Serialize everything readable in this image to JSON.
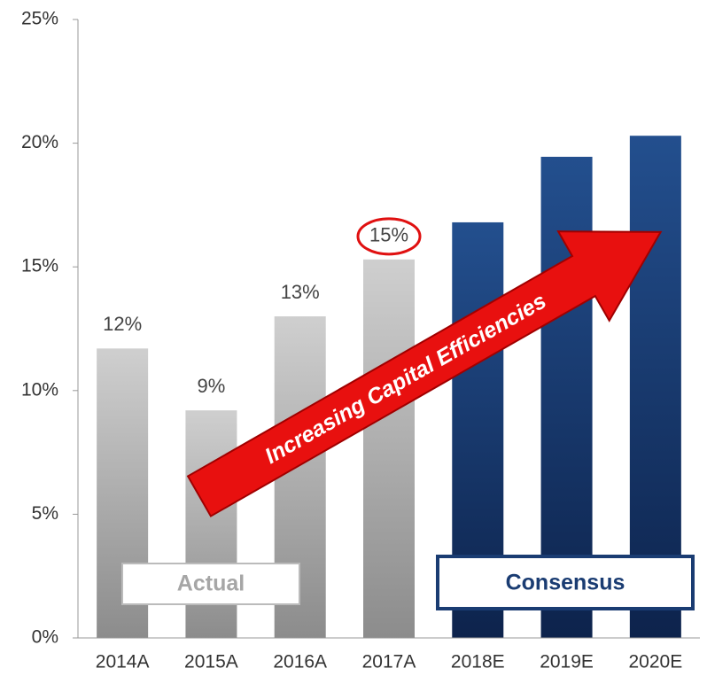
{
  "chart_data": {
    "type": "bar",
    "categories": [
      "2014A",
      "2015A",
      "2016A",
      "2017A",
      "2018E",
      "2019E",
      "2020E"
    ],
    "series": [
      {
        "name": "Actual",
        "color": "#a6a6a6",
        "values": [
          11.7,
          9.2,
          13.0,
          15.3,
          null,
          null,
          null
        ],
        "value_labels": [
          "12%",
          "9%",
          "13%",
          "15%",
          null,
          null,
          null
        ],
        "highlight_index": 3
      },
      {
        "name": "Consensus",
        "color": "#1a3c72",
        "values": [
          null,
          null,
          null,
          null,
          16.8,
          19.45,
          20.3
        ]
      }
    ],
    "ylim": [
      0,
      25
    ],
    "yticks": [
      {
        "value": 0,
        "label": "0%"
      },
      {
        "value": 5,
        "label": "5%"
      },
      {
        "value": 10,
        "label": "10%"
      },
      {
        "value": 15,
        "label": "15%"
      },
      {
        "value": 20,
        "label": "20%"
      },
      {
        "value": 25,
        "label": "25%"
      }
    ],
    "annotation": "Increasing Capital Efficiencies"
  }
}
